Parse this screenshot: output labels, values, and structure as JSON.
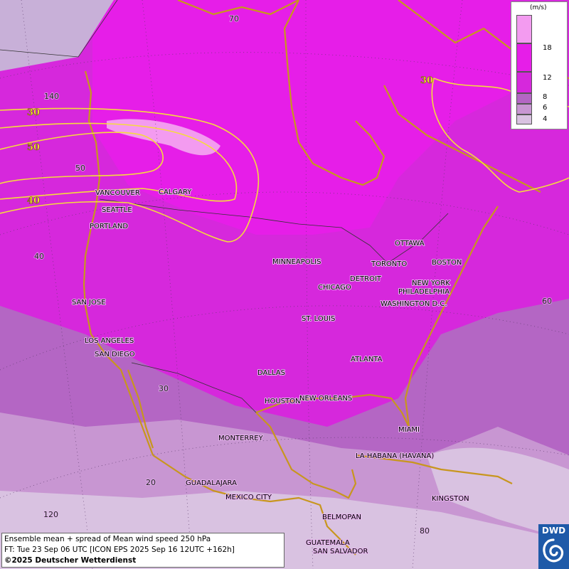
{
  "legend": {
    "unit": "(m/s)",
    "levels": [
      "18",
      "12",
      "8",
      "6",
      "4"
    ],
    "colors": [
      "#f39bf0",
      "#e61ee8",
      "#d628dc",
      "#b466c4",
      "#c896d2",
      "#d9c2e1"
    ]
  },
  "contours": {
    "label_30a": "30",
    "label_50": "50",
    "label_40": "40",
    "label_30b": "30",
    "color": "#f5dc3c"
  },
  "degrees": {
    "d70": "70",
    "d140": "140",
    "d50": "50",
    "d40": "40",
    "d60": "60",
    "d30": "30",
    "d20": "20",
    "d120": "120",
    "d80": "80"
  },
  "cities": {
    "vancouver": "VANCOUVER",
    "calgary": "CALGARY",
    "seattle": "SEATTLE",
    "portland": "PORTLAND",
    "minneapolis": "MINNEAPOLIS",
    "ottawa": "OTTAWA",
    "toronto": "TORONTO",
    "boston": "BOSTON",
    "detroit": "DETROIT",
    "newyork": "NEW YORK",
    "philadelphia": "PHILADELPHIA",
    "chicago": "CHICAGO",
    "washington": "WASHINGTON D.C.",
    "sanjose": "SAN JOSE",
    "stlouis": "ST. LOUIS",
    "losangeles": "LOS ANGELES",
    "sandiego": "SAN DIEGO",
    "atlanta": "ATLANTA",
    "dallas": "DALLAS",
    "houston": "HOUSTON",
    "neworleans": "NEW ORLEANS",
    "miami": "MIAMI",
    "monterrey": "MONTERREY",
    "lahabana": "LA HABANA (HAVANA)",
    "guadalajara": "GUADALAJARA",
    "mexicocity": "MEXICO CITY",
    "kingston": "KINGSTON",
    "belmopan": "BELMOPAN",
    "guatemala": "GUATEMALA",
    "sansalvador": "SAN SALVADOR"
  },
  "footer": {
    "line1": "Ensemble mean + spread of Mean wind speed 250 hPa",
    "line2": "FT: Tue 23 Sep 06 UTC [ICON EPS 2025 Sep 16 12UTC +162h]",
    "line3": "©2025 Deutscher Wetterdienst"
  },
  "logo": {
    "text": "DWD"
  }
}
